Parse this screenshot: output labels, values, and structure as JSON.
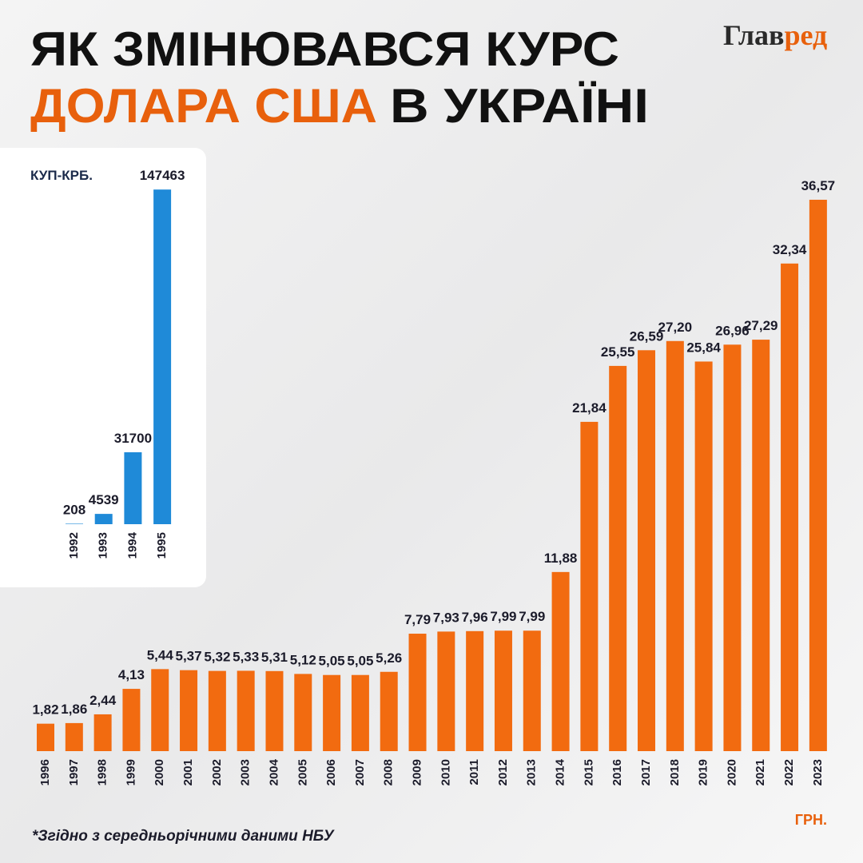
{
  "header": {
    "title": [
      "ЯК ЗМІНЮВАВСЯ КУРС",
      "ДОЛАРА США",
      "В УКРАЇНІ"
    ],
    "logo": [
      "Глав",
      "ред"
    ]
  },
  "footnote": "*Згідно з середньорічними даними НБУ",
  "chart_data": [
    {
      "type": "bar",
      "unit_label": "ГРН.",
      "color": "#f26b10",
      "categories": [
        "1996",
        "1997",
        "1998",
        "1999",
        "2000",
        "2001",
        "2002",
        "2003",
        "2004",
        "2005",
        "2006",
        "2007",
        "2008",
        "2009",
        "2010",
        "2011",
        "2012",
        "2013",
        "2014",
        "2015",
        "2016",
        "2017",
        "2018",
        "2019",
        "2020",
        "2021",
        "2022",
        "2023"
      ],
      "values": [
        1.82,
        1.86,
        2.44,
        4.13,
        5.44,
        5.37,
        5.32,
        5.33,
        5.31,
        5.12,
        5.05,
        5.05,
        5.26,
        7.79,
        7.93,
        7.96,
        7.99,
        7.99,
        11.88,
        21.84,
        25.55,
        26.59,
        27.2,
        25.84,
        26.96,
        27.29,
        32.34,
        36.57
      ],
      "value_labels": [
        "1,82",
        "1,86",
        "2,44",
        "4,13",
        "5,44",
        "5,37",
        "5,32",
        "5,33",
        "5,31",
        "5,12",
        "5,05",
        "5,05",
        "5,26",
        "7,79",
        "7,93",
        "7,96",
        "7,99",
        "7,99",
        "11,88",
        "21,84",
        "25,55",
        "26,59",
        "27,20",
        "25,84",
        "26,96",
        "27,29",
        "32,34",
        "36,57"
      ],
      "ylim": [
        0,
        38
      ]
    },
    {
      "type": "bar",
      "unit_label": "КУП-КРБ.",
      "color": "#1f8ad8",
      "categories": [
        "1992",
        "1993",
        "1994",
        "1995"
      ],
      "values": [
        208,
        4539,
        31700,
        147463
      ],
      "ylim": [
        0,
        150000
      ]
    }
  ]
}
